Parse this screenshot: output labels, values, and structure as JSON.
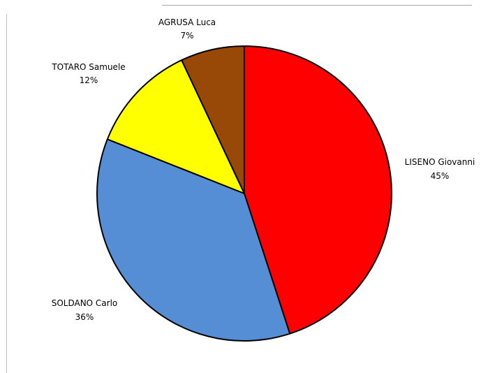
{
  "chart_data": {
    "type": "pie",
    "title": "",
    "legend": "none",
    "slices": [
      {
        "name": "LISENO Giovanni",
        "value": 45,
        "label": "45%",
        "color": "#FF0000"
      },
      {
        "name": "SOLDANO Carlo",
        "value": 36,
        "label": "36%",
        "color": "#558ED5"
      },
      {
        "name": "TOTARO Samuele",
        "value": 12,
        "label": "12%",
        "color": "#FFFF00"
      },
      {
        "name": "AGRUSA Luca",
        "value": 7,
        "label": "7%",
        "color": "#984807"
      }
    ]
  }
}
